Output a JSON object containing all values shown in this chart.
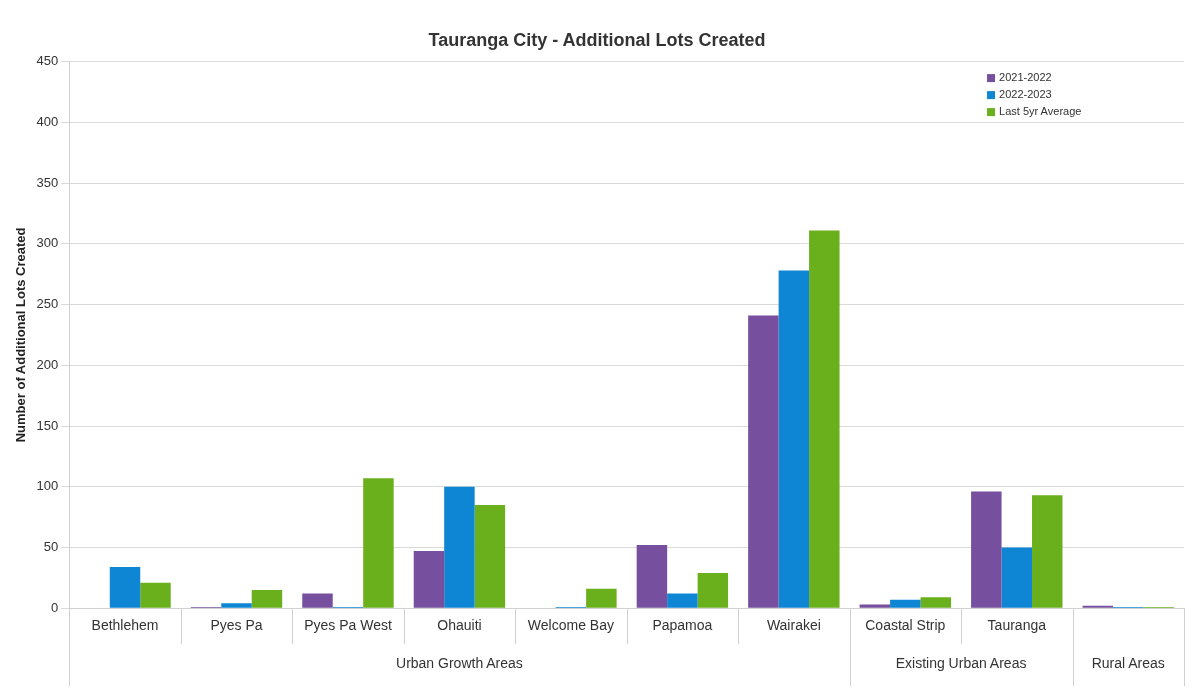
{
  "chart_data": {
    "type": "bar",
    "title": "Tauranga City - Additional Lots Created",
    "ylabel": "Number of Additional Lots Created",
    "categories": [
      "Bethlehem",
      "Pyes Pa",
      "Pyes Pa West",
      "Ohauiti",
      "Welcome Bay",
      "Papamoa",
      "Wairakei",
      "Coastal Strip",
      "Tauranga",
      null
    ],
    "series": [
      {
        "name": "2021-2022",
        "color": "#76509e",
        "values": [
          0,
          1,
          12,
          47,
          0,
          52,
          241,
          3,
          96,
          2
        ]
      },
      {
        "name": "2022-2023",
        "color": "#0e86d4",
        "values": [
          34,
          4,
          1,
          100,
          1,
          12,
          278,
          7,
          50,
          1
        ]
      },
      {
        "name": "Last 5yr Average",
        "color": "#6aaf1c",
        "values": [
          21,
          15,
          107,
          85,
          16,
          29,
          311,
          9,
          93,
          1
        ]
      }
    ],
    "annotations": [
      "Urban Growth Areas",
      "Existing Urban Areas",
      "Rural Areas"
    ],
    "ylim": [
      0,
      450
    ],
    "yticks": [
      0,
      50,
      100,
      150,
      200,
      250,
      300,
      350,
      400,
      450
    ],
    "grid": "y",
    "legend": "top right"
  }
}
